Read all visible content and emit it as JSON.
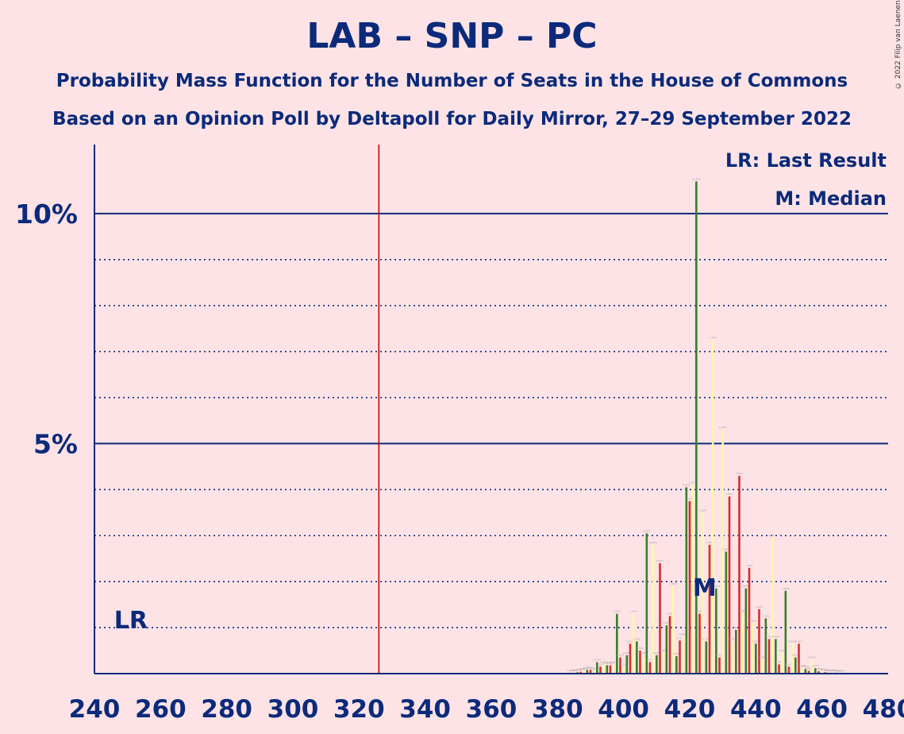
{
  "header": {
    "title": "LAB – SNP – PC",
    "subtitle1": "Probability Mass Function for the Number of Seats in the House of Commons",
    "subtitle2": "Based on an Opinion Poll by Deltapoll for Daily Mirror, 27–29 September 2022",
    "copyright": "© 2022 Filip van Laenen"
  },
  "legend": {
    "last_result": "LR: Last Result",
    "median": "M: Median"
  },
  "colors": {
    "background": "#fde3e6",
    "axis": "#0c2a7a",
    "majority_line": "#cc0000",
    "series": [
      "#d32f2f",
      "#fff7a8",
      "#3a7d2a"
    ]
  },
  "chart_data": {
    "type": "bar",
    "xlim": [
      240,
      480
    ],
    "ylim": [
      0,
      11.5
    ],
    "x_ticks": [
      "240",
      "260",
      "280",
      "300",
      "320",
      "340",
      "360",
      "380",
      "400",
      "420",
      "440",
      "460",
      "480"
    ],
    "y_ticks": [
      {
        "value": 5,
        "label": "5%"
      },
      {
        "value": 10,
        "label": "10%"
      }
    ],
    "minor_gridlines": [
      1,
      2,
      3,
      4,
      6,
      7,
      8,
      9
    ],
    "majority_line": 326,
    "last_result": {
      "seat": 251,
      "label": "LR"
    },
    "median": {
      "seat": 425,
      "label": "M"
    },
    "bars": [
      {
        "x": 384,
        "y": 0.02
      },
      {
        "x": 385,
        "y": 0.02
      },
      {
        "x": 386,
        "y": 0.03
      },
      {
        "x": 387,
        "y": 0.04
      },
      {
        "x": 388,
        "y": 0.05
      },
      {
        "x": 389,
        "y": 0.08
      },
      {
        "x": 390,
        "y": 0.08
      },
      {
        "x": 391,
        "y": 0.05
      },
      {
        "x": 392,
        "y": 0.25
      },
      {
        "x": 393,
        "y": 0.15
      },
      {
        "x": 394,
        "y": 0.2
      },
      {
        "x": 395,
        "y": 0.18
      },
      {
        "x": 396,
        "y": 0.18
      },
      {
        "x": 397,
        "y": 0.2
      },
      {
        "x": 398,
        "y": 1.3
      },
      {
        "x": 399,
        "y": 0.35
      },
      {
        "x": 400,
        "y": 0.15
      },
      {
        "x": 401,
        "y": 0.4
      },
      {
        "x": 402,
        "y": 0.65
      },
      {
        "x": 403,
        "y": 1.3
      },
      {
        "x": 404,
        "y": 0.7
      },
      {
        "x": 405,
        "y": 0.5
      },
      {
        "x": 406,
        "y": 0.4
      },
      {
        "x": 407,
        "y": 3.05
      },
      {
        "x": 408,
        "y": 0.25
      },
      {
        "x": 409,
        "y": 2.8
      },
      {
        "x": 410,
        "y": 0.4
      },
      {
        "x": 411,
        "y": 2.4
      },
      {
        "x": 412,
        "y": 0.45
      },
      {
        "x": 413,
        "y": 1.05
      },
      {
        "x": 414,
        "y": 1.25
      },
      {
        "x": 415,
        "y": 1.9
      },
      {
        "x": 416,
        "y": 0.38
      },
      {
        "x": 417,
        "y": 0.72
      },
      {
        "x": 418,
        "y": 0.8
      },
      {
        "x": 419,
        "y": 4.05
      },
      {
        "x": 420,
        "y": 3.75
      },
      {
        "x": 421,
        "y": 4.1
      },
      {
        "x": 422,
        "y": 10.7
      },
      {
        "x": 423,
        "y": 1.3
      },
      {
        "x": 424,
        "y": 3.5
      },
      {
        "x": 425,
        "y": 0.7
      },
      {
        "x": 426,
        "y": 2.8
      },
      {
        "x": 427,
        "y": 7.25
      },
      {
        "x": 428,
        "y": 1.85
      },
      {
        "x": 429,
        "y": 0.35
      },
      {
        "x": 430,
        "y": 5.3
      },
      {
        "x": 431,
        "y": 2.65
      },
      {
        "x": 432,
        "y": 3.85
      },
      {
        "x": 433,
        "y": 0.7
      },
      {
        "x": 434,
        "y": 0.95
      },
      {
        "x": 435,
        "y": 4.3
      },
      {
        "x": 436,
        "y": 1.3
      },
      {
        "x": 437,
        "y": 1.85
      },
      {
        "x": 438,
        "y": 2.3
      },
      {
        "x": 439,
        "y": 1.1
      },
      {
        "x": 440,
        "y": 0.65
      },
      {
        "x": 441,
        "y": 1.4
      },
      {
        "x": 442,
        "y": 0.3
      },
      {
        "x": 443,
        "y": 1.2
      },
      {
        "x": 444,
        "y": 0.75
      },
      {
        "x": 445,
        "y": 2.95
      },
      {
        "x": 446,
        "y": 0.75
      },
      {
        "x": 447,
        "y": 0.2
      },
      {
        "x": 448,
        "y": 0.45
      },
      {
        "x": 449,
        "y": 1.8
      },
      {
        "x": 450,
        "y": 0.15
      },
      {
        "x": 451,
        "y": 0.65
      },
      {
        "x": 452,
        "y": 0.35
      },
      {
        "x": 453,
        "y": 0.65
      },
      {
        "x": 454,
        "y": 0.12
      },
      {
        "x": 455,
        "y": 0.1
      },
      {
        "x": 456,
        "y": 0.06
      },
      {
        "x": 457,
        "y": 0.3
      },
      {
        "x": 458,
        "y": 0.12
      },
      {
        "x": 459,
        "y": 0.05
      },
      {
        "x": 460,
        "y": 0.04
      },
      {
        "x": 461,
        "y": 0.03
      },
      {
        "x": 462,
        "y": 0.02
      },
      {
        "x": 463,
        "y": 0.02
      },
      {
        "x": 464,
        "y": 0.02
      },
      {
        "x": 465,
        "y": 0.01
      },
      {
        "x": 466,
        "y": 0.01
      }
    ]
  }
}
